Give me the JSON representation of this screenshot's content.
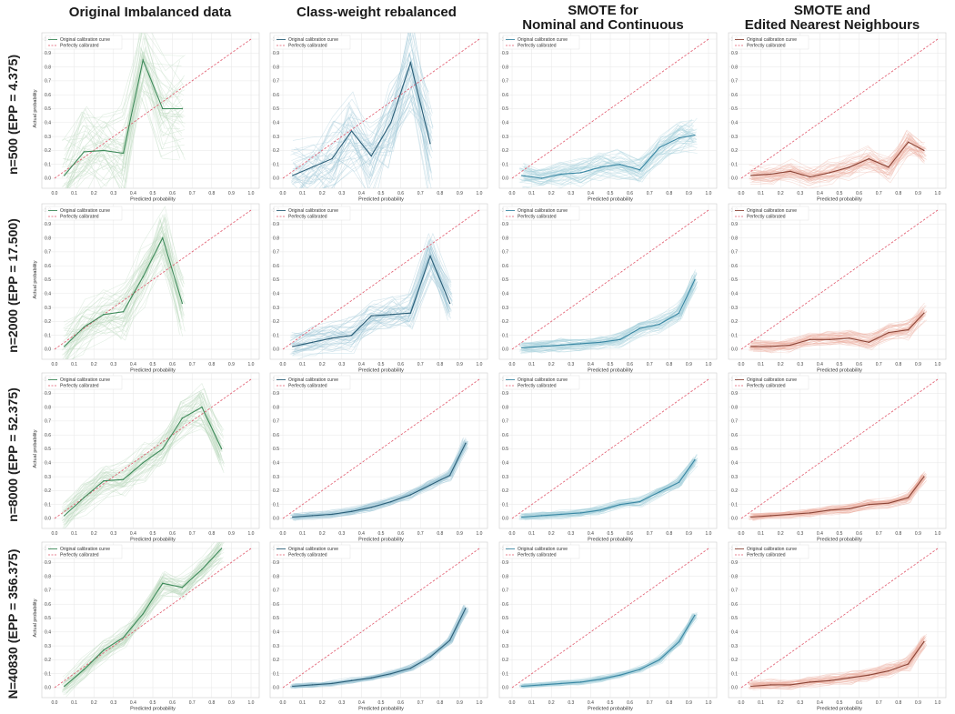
{
  "column_titles": [
    "Original Imbalanced data",
    "Class-weight rebalanced",
    "SMOTE for\nNominal and Continuous",
    "SMOTE and\nEdited Nearest Neighbours"
  ],
  "row_labels": [
    "n=500 (EPP = 4.375)",
    "n=2000 (EPP = 17.500)",
    "n=8000 (EPP = 52.375)",
    "N=40830 (EPP = 356.375)"
  ],
  "axis": {
    "xlabel": "Predicted probability",
    "ylabel": "Actual probability",
    "xticks": [
      "0.0",
      "0.1",
      "0.2",
      "0.3",
      "0.4",
      "0.5",
      "0.6",
      "0.7",
      "0.8",
      "0.9",
      "1.0"
    ],
    "yticks": [
      "0.0",
      "0.1",
      "0.2",
      "0.3",
      "0.4",
      "0.5",
      "0.6",
      "0.7",
      "0.8",
      "0.9",
      "1.0"
    ]
  },
  "legend": {
    "curve": "Original calibration curve",
    "perfect": "Perfectly calibrated"
  },
  "colors": {
    "perfect_line": "#e0566a",
    "grid": "#e6e6e6",
    "frame": "#cccccc",
    "method_line": [
      "#3e8a5a",
      "#2c5f78",
      "#3a87a3",
      "#8c4638"
    ],
    "method_band": [
      "#bcd9bf",
      "#9fc8d6",
      "#a6d0dc",
      "#eeb4a6"
    ]
  },
  "chart_data": [
    {
      "type": "line",
      "row": 0,
      "col": 0,
      "x": [
        0.05,
        0.15,
        0.25,
        0.35,
        0.45,
        0.55,
        0.65
      ],
      "y": [
        0.02,
        0.19,
        0.2,
        0.18,
        0.85,
        0.5,
        0.5
      ],
      "band": 0.32,
      "xlim": [
        0,
        1
      ],
      "ylim": [
        0,
        1
      ]
    },
    {
      "type": "line",
      "row": 0,
      "col": 1,
      "x": [
        0.05,
        0.15,
        0.25,
        0.35,
        0.45,
        0.55,
        0.65,
        0.75
      ],
      "y": [
        0.02,
        0.08,
        0.14,
        0.34,
        0.16,
        0.4,
        0.83,
        0.25
      ],
      "band": 0.3,
      "xlim": [
        0,
        1
      ],
      "ylim": [
        0,
        1
      ]
    },
    {
      "type": "line",
      "row": 0,
      "col": 2,
      "x": [
        0.05,
        0.15,
        0.25,
        0.35,
        0.45,
        0.55,
        0.65,
        0.75,
        0.85,
        0.93
      ],
      "y": [
        0.02,
        0.0,
        0.03,
        0.04,
        0.08,
        0.1,
        0.06,
        0.22,
        0.29,
        0.31
      ],
      "band": 0.09,
      "xlim": [
        0,
        1
      ],
      "ylim": [
        0,
        1
      ]
    },
    {
      "type": "line",
      "row": 0,
      "col": 3,
      "x": [
        0.05,
        0.15,
        0.25,
        0.35,
        0.45,
        0.55,
        0.65,
        0.75,
        0.85,
        0.93
      ],
      "y": [
        0.02,
        0.03,
        0.05,
        0.01,
        0.04,
        0.08,
        0.14,
        0.08,
        0.26,
        0.2
      ],
      "band": 0.08,
      "xlim": [
        0,
        1
      ],
      "ylim": [
        0,
        1
      ]
    },
    {
      "type": "line",
      "row": 1,
      "col": 0,
      "x": [
        0.05,
        0.15,
        0.25,
        0.35,
        0.45,
        0.55,
        0.65
      ],
      "y": [
        0.02,
        0.16,
        0.25,
        0.27,
        0.52,
        0.8,
        0.33
      ],
      "band": 0.2,
      "xlim": [
        0,
        1
      ],
      "ylim": [
        0,
        1
      ]
    },
    {
      "type": "line",
      "row": 1,
      "col": 1,
      "x": [
        0.05,
        0.15,
        0.25,
        0.35,
        0.45,
        0.55,
        0.65,
        0.75,
        0.85
      ],
      "y": [
        0.02,
        0.05,
        0.08,
        0.1,
        0.24,
        0.25,
        0.26,
        0.67,
        0.33
      ],
      "band": 0.12,
      "xlim": [
        0,
        1
      ],
      "ylim": [
        0,
        1
      ]
    },
    {
      "type": "line",
      "row": 1,
      "col": 2,
      "x": [
        0.05,
        0.15,
        0.25,
        0.35,
        0.45,
        0.55,
        0.65,
        0.75,
        0.85,
        0.93
      ],
      "y": [
        0.01,
        0.02,
        0.03,
        0.04,
        0.05,
        0.07,
        0.15,
        0.18,
        0.26,
        0.5
      ],
      "band": 0.05,
      "xlim": [
        0,
        1
      ],
      "ylim": [
        0,
        1
      ]
    },
    {
      "type": "line",
      "row": 1,
      "col": 3,
      "x": [
        0.05,
        0.15,
        0.25,
        0.35,
        0.45,
        0.55,
        0.65,
        0.75,
        0.85,
        0.93
      ],
      "y": [
        0.02,
        0.02,
        0.03,
        0.07,
        0.07,
        0.08,
        0.05,
        0.12,
        0.14,
        0.26
      ],
      "band": 0.05,
      "xlim": [
        0,
        1
      ],
      "ylim": [
        0,
        1
      ]
    },
    {
      "type": "line",
      "row": 2,
      "col": 0,
      "x": [
        0.05,
        0.15,
        0.25,
        0.35,
        0.45,
        0.55,
        0.65,
        0.75,
        0.85
      ],
      "y": [
        0.02,
        0.15,
        0.27,
        0.28,
        0.4,
        0.5,
        0.72,
        0.8,
        0.5
      ],
      "band": 0.12,
      "xlim": [
        0,
        1
      ],
      "ylim": [
        0,
        1
      ]
    },
    {
      "type": "line",
      "row": 2,
      "col": 1,
      "x": [
        0.05,
        0.15,
        0.25,
        0.35,
        0.45,
        0.55,
        0.65,
        0.75,
        0.85,
        0.93
      ],
      "y": [
        0.01,
        0.02,
        0.03,
        0.05,
        0.08,
        0.12,
        0.17,
        0.24,
        0.31,
        0.54
      ],
      "band": 0.03,
      "xlim": [
        0,
        1
      ],
      "ylim": [
        0,
        1
      ]
    },
    {
      "type": "line",
      "row": 2,
      "col": 2,
      "x": [
        0.05,
        0.15,
        0.25,
        0.35,
        0.45,
        0.55,
        0.65,
        0.75,
        0.85,
        0.93
      ],
      "y": [
        0.01,
        0.02,
        0.03,
        0.04,
        0.06,
        0.1,
        0.12,
        0.19,
        0.26,
        0.42
      ],
      "band": 0.03,
      "xlim": [
        0,
        1
      ],
      "ylim": [
        0,
        1
      ]
    },
    {
      "type": "line",
      "row": 2,
      "col": 3,
      "x": [
        0.05,
        0.15,
        0.25,
        0.35,
        0.45,
        0.55,
        0.65,
        0.75,
        0.85,
        0.93
      ],
      "y": [
        0.01,
        0.02,
        0.03,
        0.04,
        0.06,
        0.07,
        0.1,
        0.11,
        0.15,
        0.3
      ],
      "band": 0.03,
      "xlim": [
        0,
        1
      ],
      "ylim": [
        0,
        1
      ]
    },
    {
      "type": "line",
      "row": 3,
      "col": 0,
      "x": [
        0.05,
        0.15,
        0.25,
        0.35,
        0.45,
        0.55,
        0.65,
        0.75,
        0.85
      ],
      "y": [
        0.01,
        0.13,
        0.27,
        0.36,
        0.53,
        0.75,
        0.72,
        0.85,
        1.0
      ],
      "band": 0.08,
      "xlim": [
        0,
        1
      ],
      "ylim": [
        0,
        1
      ]
    },
    {
      "type": "line",
      "row": 3,
      "col": 1,
      "x": [
        0.05,
        0.15,
        0.25,
        0.35,
        0.45,
        0.55,
        0.65,
        0.75,
        0.85,
        0.93
      ],
      "y": [
        0.01,
        0.02,
        0.03,
        0.05,
        0.07,
        0.1,
        0.14,
        0.22,
        0.34,
        0.57
      ],
      "band": 0.02,
      "xlim": [
        0,
        1
      ],
      "ylim": [
        0,
        1
      ]
    },
    {
      "type": "line",
      "row": 3,
      "col": 2,
      "x": [
        0.05,
        0.15,
        0.25,
        0.35,
        0.45,
        0.55,
        0.65,
        0.75,
        0.85,
        0.93
      ],
      "y": [
        0.01,
        0.02,
        0.03,
        0.04,
        0.06,
        0.09,
        0.13,
        0.2,
        0.33,
        0.52
      ],
      "band": 0.02,
      "xlim": [
        0,
        1
      ],
      "ylim": [
        0,
        1
      ]
    },
    {
      "type": "line",
      "row": 3,
      "col": 3,
      "x": [
        0.05,
        0.15,
        0.25,
        0.35,
        0.45,
        0.55,
        0.65,
        0.75,
        0.85,
        0.93
      ],
      "y": [
        0.01,
        0.02,
        0.02,
        0.04,
        0.05,
        0.07,
        0.09,
        0.12,
        0.17,
        0.33
      ],
      "band": 0.04,
      "xlim": [
        0,
        1
      ],
      "ylim": [
        0,
        1
      ]
    }
  ]
}
